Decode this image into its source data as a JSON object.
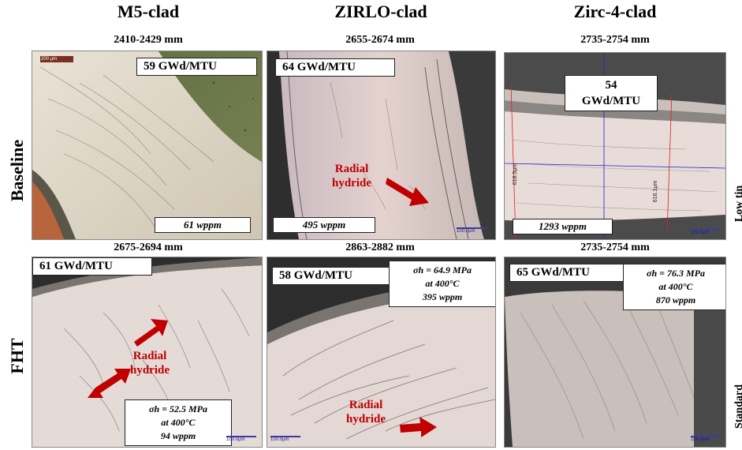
{
  "columns": {
    "m5": {
      "title": "M5-clad"
    },
    "zirlo": {
      "title": "ZIRLO-clad"
    },
    "zirc4": {
      "title": "Zirc-4-clad"
    }
  },
  "rows": {
    "baseline": "Baseline",
    "fht": "FHT"
  },
  "side_labels": {
    "top": "Low tin",
    "bottom": "Standard"
  },
  "panels": {
    "m5_baseline": {
      "range": "2410-2429 mm",
      "burnup": "59 GWd/MTU",
      "hydrogen": "61 wppm",
      "scale": "200 µm"
    },
    "zirlo_baseline": {
      "range": "2655-2674 mm",
      "burnup": "64 GWd/MTU",
      "hydrogen": "495 wppm",
      "scale": "100.0µm",
      "arrow_label_1": "Radial",
      "arrow_label_2": "hydride"
    },
    "zirc4_baseline": {
      "range": "2735-2754 mm",
      "burnup_1": "54",
      "burnup_2": "GWd/MTU",
      "hydrogen": "1293 wppm",
      "scale": "100.0µm",
      "dim_left": "618.5µm",
      "dim_right": "616.1µm"
    },
    "m5_fht": {
      "range": "2675-2694 mm",
      "burnup": "61 GWd/MTU",
      "stress": "σh = 52.5 MPa",
      "temp": "at 400°C",
      "hydrogen": "94 wppm",
      "scale": "100.0µm",
      "arrow_label_1": "Radial",
      "arrow_label_2": "hydride"
    },
    "zirlo_fht": {
      "range": "2863-2882 mm",
      "burnup": "58 GWd/MTU",
      "stress": "σh = 64.9 MPa",
      "temp": "at 400°C",
      "hydrogen": "395 wppm",
      "scale": "100.0µm",
      "arrow_label_1": "Radial",
      "arrow_label_2": "hydride"
    },
    "zirc4_fht": {
      "range": "2735-2754 mm",
      "burnup": "65 GWd/MTU",
      "stress": "σh = 76.3 MPa",
      "temp": "at 400°C",
      "hydrogen": "870 wppm",
      "scale": "100.0µm"
    }
  },
  "colors": {
    "arrow": "#c00000",
    "cladding": "#d8c9b8",
    "scale_bar": "#3a3aa8"
  }
}
